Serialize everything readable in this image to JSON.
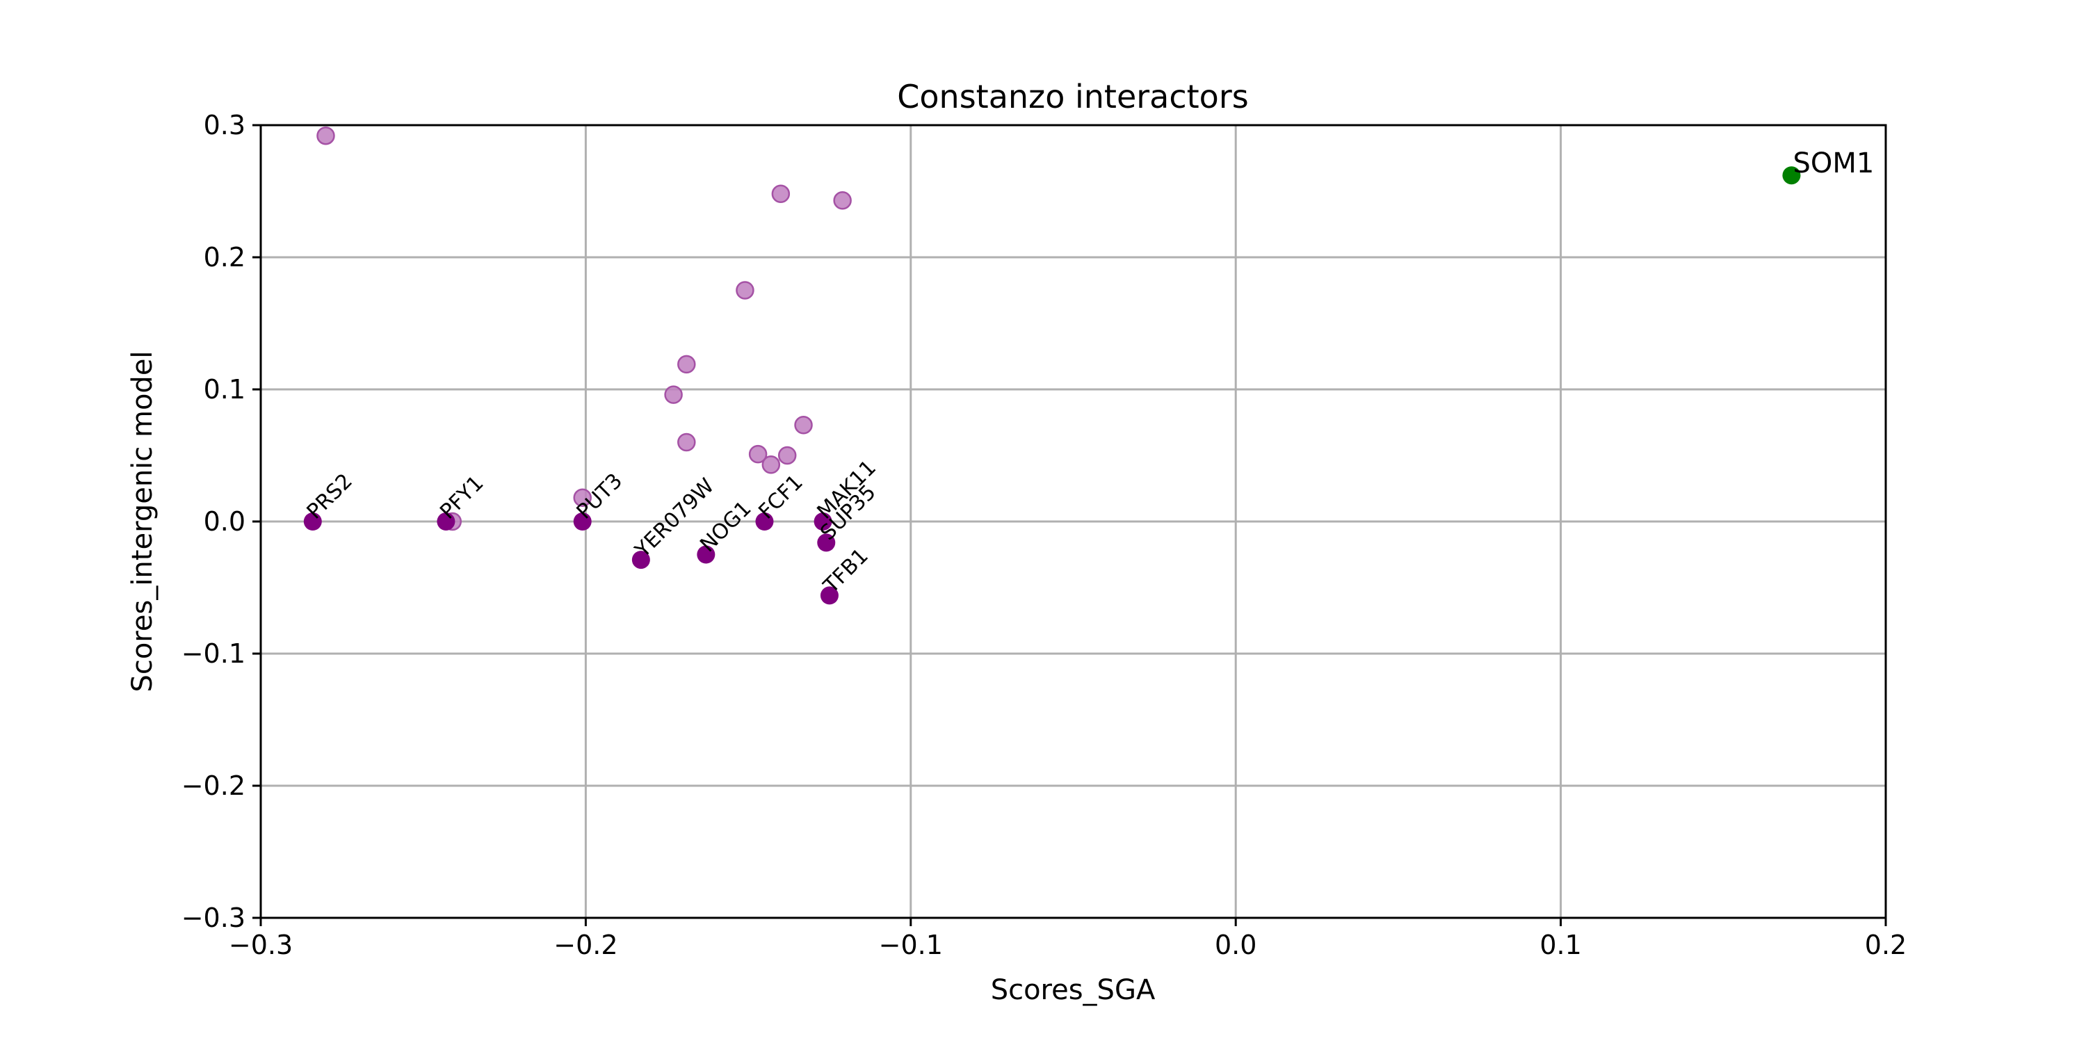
{
  "chart_data": {
    "type": "scatter",
    "title": "Constanzo interactors",
    "xlabel": "Scores_SGA",
    "ylabel": "Scores_intergenic model",
    "xlim": [
      -0.3,
      0.2
    ],
    "ylim": [
      -0.3,
      0.3
    ],
    "xticks": [
      -0.3,
      -0.2,
      -0.1,
      0.0,
      0.1,
      0.2
    ],
    "yticks": [
      -0.3,
      -0.2,
      -0.1,
      0.0,
      0.1,
      0.2,
      0.3
    ],
    "xtick_labels": [
      "−0.3",
      "−0.2",
      "−0.1",
      "0.0",
      "0.1",
      "0.2"
    ],
    "ytick_labels": [
      "−0.3",
      "−0.2",
      "−0.1",
      "0.0",
      "0.1",
      "0.2",
      "0.3"
    ],
    "grid": true,
    "colors": {
      "labeled": "#800080",
      "unlabeled": "#bf7fbf",
      "highlight": "#008000"
    },
    "series": [
      {
        "style": "unlabeled",
        "points": [
          {
            "x": -0.28,
            "y": 0.292
          },
          {
            "x": -0.14,
            "y": 0.248
          },
          {
            "x": -0.121,
            "y": 0.243
          },
          {
            "x": -0.151,
            "y": 0.175
          },
          {
            "x": -0.169,
            "y": 0.119
          },
          {
            "x": -0.173,
            "y": 0.096
          },
          {
            "x": -0.133,
            "y": 0.073
          },
          {
            "x": -0.169,
            "y": 0.06
          },
          {
            "x": -0.147,
            "y": 0.051
          },
          {
            "x": -0.138,
            "y": 0.05
          },
          {
            "x": -0.143,
            "y": 0.043
          },
          {
            "x": -0.201,
            "y": 0.018
          },
          {
            "x": -0.241,
            "y": 0.0
          }
        ]
      },
      {
        "style": "labeled",
        "points": [
          {
            "x": -0.284,
            "y": 0.0,
            "label": "PRS2"
          },
          {
            "x": -0.243,
            "y": 0.0,
            "label": "PFY1"
          },
          {
            "x": -0.201,
            "y": 0.0,
            "label": "PUT3"
          },
          {
            "x": -0.183,
            "y": -0.029,
            "label": "YER079W"
          },
          {
            "x": -0.163,
            "y": -0.025,
            "label": "NOG1"
          },
          {
            "x": -0.145,
            "y": 0.0,
            "label": "FCF1"
          },
          {
            "x": -0.127,
            "y": 0.0,
            "label": "MAK11"
          },
          {
            "x": -0.126,
            "y": -0.016,
            "label": "SUP35"
          },
          {
            "x": -0.125,
            "y": -0.056,
            "label": "TFB1"
          }
        ]
      },
      {
        "style": "highlight",
        "points": [
          {
            "x": 0.171,
            "y": 0.262,
            "label": "SOM1"
          }
        ]
      }
    ]
  }
}
